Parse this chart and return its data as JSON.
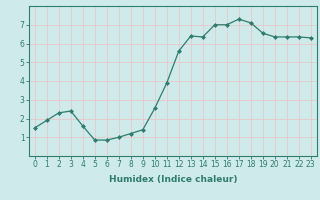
{
  "x": [
    0,
    1,
    2,
    3,
    4,
    5,
    6,
    7,
    8,
    9,
    10,
    11,
    12,
    13,
    14,
    15,
    16,
    17,
    18,
    19,
    20,
    21,
    22,
    23
  ],
  "y": [
    1.5,
    1.9,
    2.3,
    2.4,
    1.6,
    0.85,
    0.85,
    1.0,
    1.2,
    1.4,
    2.55,
    3.9,
    5.6,
    6.4,
    6.35,
    7.0,
    7.0,
    7.3,
    7.1,
    6.55,
    6.35,
    6.35,
    6.35,
    6.3
  ],
  "line_color": "#2e7d6e",
  "marker": "D",
  "marker_size": 2.0,
  "linewidth": 0.9,
  "xlabel": "Humidex (Indice chaleur)",
  "xlim": [
    -0.5,
    23.5
  ],
  "ylim": [
    0,
    8
  ],
  "yticks": [
    1,
    2,
    3,
    4,
    5,
    6,
    7
  ],
  "xticks": [
    0,
    1,
    2,
    3,
    4,
    5,
    6,
    7,
    8,
    9,
    10,
    11,
    12,
    13,
    14,
    15,
    16,
    17,
    18,
    19,
    20,
    21,
    22,
    23
  ],
  "bg_color": "#ceeaeb",
  "grid_color": "#e8c8c8",
  "axis_color": "#2e7d6e",
  "tick_color": "#2e7d6e",
  "label_fontsize": 6.5,
  "tick_fontsize": 5.5
}
